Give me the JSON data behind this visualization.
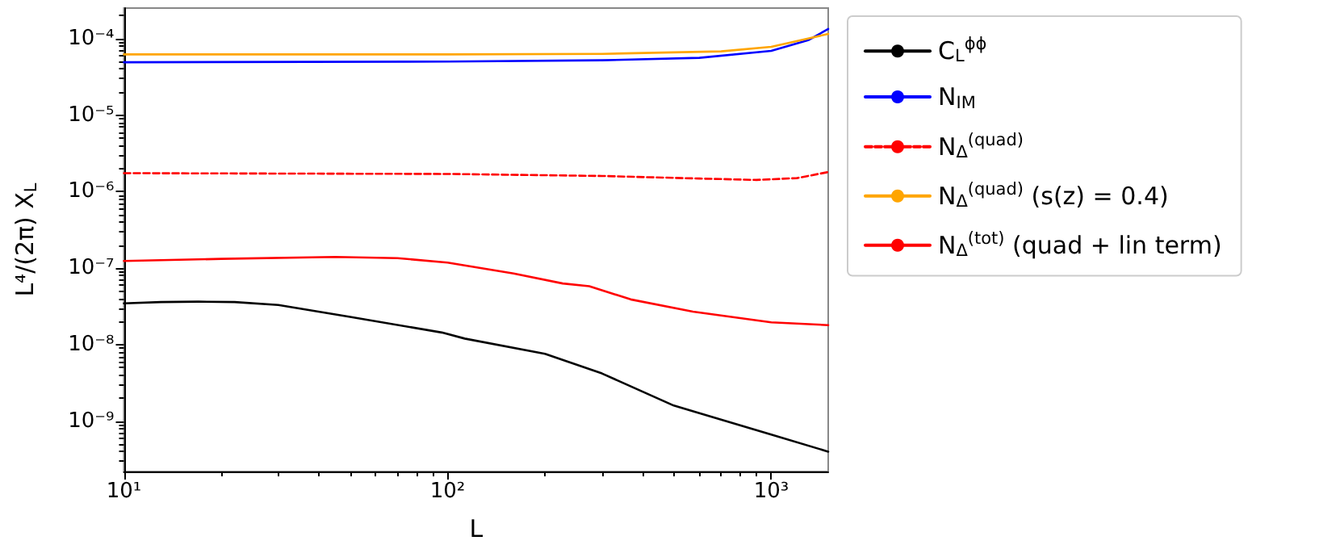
{
  "chart_data": {
    "type": "line",
    "xlabel": "L",
    "ylabel": "L⁴/(2π) X$_{L}$",
    "log": "xy",
    "grid": false,
    "legend": "right",
    "marker": "none",
    "xlim": [
      10,
      1500
    ],
    "ylim": [
      2.2e-10,
      0.00025
    ],
    "xticks": [
      {
        "value": 10,
        "label": "10¹"
      },
      {
        "value": 100,
        "label": "10²"
      },
      {
        "value": 1000,
        "label": "10³"
      }
    ],
    "yticks": [
      {
        "value": 1e-09,
        "label": "10⁻⁹"
      },
      {
        "value": 1e-08,
        "label": "10⁻⁸"
      },
      {
        "value": 1e-07,
        "label": "10⁻⁷"
      },
      {
        "value": 1e-06,
        "label": "10⁻⁶"
      },
      {
        "value": 1e-05,
        "label": "10⁻⁵"
      },
      {
        "value": 0.0001,
        "label": "10⁻⁴"
      }
    ],
    "series": [
      {
        "name": "C$_{L}$$^{ϕϕ}$",
        "color": "#000000",
        "line_style": "solid",
        "x": [
          10,
          13,
          17,
          22,
          30,
          50,
          96,
          113,
          200,
          300,
          500,
          1000,
          1500
        ],
        "values": [
          3.46e-08,
          3.6e-08,
          3.65e-08,
          3.6e-08,
          3.3e-08,
          2.3e-08,
          1.44e-08,
          1.2e-08,
          7.6e-09,
          4.2e-09,
          1.6e-09,
          6.7e-10,
          4e-10
        ]
      },
      {
        "name": "N$_{IM}$",
        "color": "#0000ff",
        "line_style": "solid",
        "x": [
          10,
          100,
          300,
          600,
          1000,
          1300,
          1500
        ],
        "values": [
          4.9e-05,
          5e-05,
          5.2e-05,
          5.6e-05,
          6.9e-05,
          9.5e-05,
          0.000133
        ]
      },
      {
        "name": "N$_{Δ}$$^{(quad)}$",
        "color": "#ff0000",
        "line_style": "dashed",
        "x": [
          10,
          100,
          300,
          600,
          900,
          1200,
          1500
        ],
        "values": [
          1.74e-06,
          1.7e-06,
          1.6e-06,
          1.48e-06,
          1.42e-06,
          1.5e-06,
          1.8e-06
        ]
      },
      {
        "name": "N$_{Δ}$$^{(quad)}$ (s(z) = 0.4)",
        "color": "#ffa500",
        "line_style": "solid",
        "x": [
          10,
          100,
          300,
          700,
          1000,
          1300,
          1500
        ],
        "values": [
          6.2e-05,
          6.2e-05,
          6.3e-05,
          6.8e-05,
          7.8e-05,
          0.0001,
          0.000115
        ]
      },
      {
        "name": "N$_{Δ}$$^{(tot)}$ (quad + lin term)",
        "color": "#ff0000",
        "line_style": "solid",
        "x": [
          10,
          20,
          45,
          70,
          100,
          160,
          227,
          274,
          368,
          573,
          1000,
          1500
        ],
        "values": [
          1.24e-07,
          1.32e-07,
          1.4e-07,
          1.35e-07,
          1.18e-07,
          8.5e-08,
          6.3e-08,
          5.8e-08,
          3.9e-08,
          2.7e-08,
          1.96e-08,
          1.8e-08
        ]
      }
    ]
  }
}
